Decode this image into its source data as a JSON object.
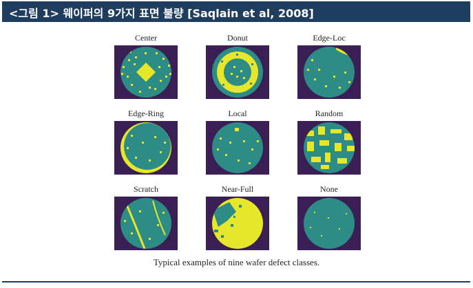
{
  "header": {
    "title": "<그림 1> 웨이퍼의 9가지 표면 불량 [Saqlain et al, 2008]"
  },
  "figure": {
    "classes": [
      "Center",
      "Donut",
      "Edge-Loc",
      "Edge-Ring",
      "Local",
      "Random",
      "Scratch",
      "Near-Full",
      "None"
    ],
    "caption": "Typical examples of nine wafer defect classes.",
    "colors": {
      "background": "#3a1f55",
      "wafer": "#2e8c86",
      "defect": "#e6e62a",
      "header": "#1e3d5f"
    }
  }
}
